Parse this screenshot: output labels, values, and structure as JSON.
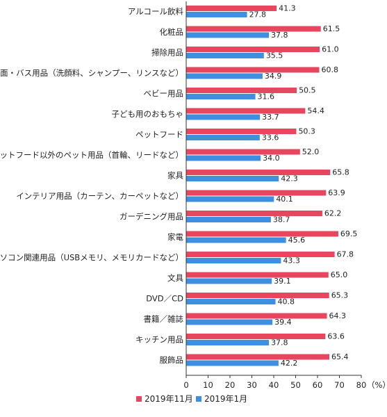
{
  "chart_data": {
    "type": "bar",
    "orientation": "horizontal",
    "categories": [
      "アルコール飲料",
      "化粧品",
      "掃除用品",
      "洗面・バス用品（洗顔料、シャンプー、リンスなど）",
      "ベビー用品",
      "子ども用のおもちゃ",
      "ペットフード",
      "ペットフード以外のペット用品（首輪、リードなど）",
      "家具",
      "インテリア用品（カーテン、カーペットなど）",
      "ガーデニング用品",
      "家電",
      "パソコン関連用品（USBメモリ、メモリカードなど）",
      "文具",
      "DVD／CD",
      "書籍／雑誌",
      "キッチン用品",
      "服飾品"
    ],
    "series": [
      {
        "name": "2019年11月",
        "color": "#e8455e",
        "values": [
          41.3,
          61.5,
          61.0,
          60.8,
          50.5,
          54.4,
          50.3,
          52.0,
          65.8,
          63.9,
          62.2,
          69.5,
          67.8,
          65.0,
          65.3,
          64.3,
          63.6,
          65.4
        ],
        "labels": [
          "41.3",
          "61.5",
          "61.0",
          "60.8",
          "50.5",
          "54.4",
          "50.3",
          "52.0",
          "65.8",
          "63.9",
          "62.2",
          "69.5",
          "67.8",
          "65.0",
          "65.3",
          "64.3",
          "63.6",
          "65.4"
        ]
      },
      {
        "name": "2019年1月",
        "color": "#3f8fe0",
        "values": [
          27.8,
          37.8,
          35.5,
          34.9,
          31.6,
          33.7,
          33.6,
          34.0,
          42.3,
          40.1,
          38.7,
          45.6,
          43.3,
          39.1,
          40.8,
          39.4,
          37.8,
          42.2
        ],
        "labels": [
          "27.8",
          "37.8",
          "35.5",
          "34.9",
          "31.6",
          "33.7",
          "33.6",
          "34.0",
          "42.3",
          "40.1",
          "38.7",
          "45.6",
          "43.3",
          "39.1",
          "40.8",
          "39.4",
          "37.8",
          "42.2"
        ]
      }
    ],
    "xlim": [
      0,
      80
    ],
    "xticks": [
      "0",
      "10",
      "20",
      "30",
      "40",
      "50",
      "60",
      "70",
      "80"
    ],
    "unit_label": "（%）",
    "legend_position": "bottom",
    "grid": false
  }
}
